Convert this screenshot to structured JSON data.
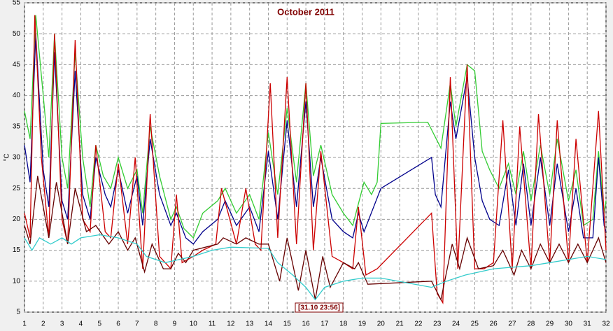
{
  "chart_data": {
    "type": "line",
    "title": "October 2011",
    "y_label": "°C",
    "annotation": "[31.10 23:56]",
    "xlim": [
      1,
      32
    ],
    "ylim": [
      5,
      55
    ],
    "xticks": [
      1,
      2,
      3,
      4,
      5,
      6,
      7,
      8,
      9,
      10,
      11,
      12,
      13,
      14,
      15,
      16,
      17,
      18,
      19,
      20,
      21,
      22,
      23,
      24,
      25,
      26,
      27,
      28,
      29,
      30,
      31,
      32
    ],
    "yticks": [
      5,
      10,
      15,
      20,
      25,
      30,
      35,
      40,
      45,
      50,
      55
    ],
    "grid": true,
    "series": [
      {
        "color": "#33cc33",
        "x": [
          1,
          1.3,
          1.6,
          2,
          2.3,
          2.6,
          3,
          3.3,
          3.7,
          4.1,
          4.5,
          4.8,
          5.2,
          5.6,
          6,
          6.5,
          7,
          7.3,
          7.7,
          8.2,
          8.8,
          9.1,
          9.5,
          10,
          10.5,
          11.3,
          11.7,
          12.3,
          13,
          13.5,
          14,
          14.5,
          15,
          15.5,
          16,
          16.4,
          16.8,
          17.4,
          18,
          18.5,
          19.1,
          19.5,
          19.8,
          20,
          22.5,
          23.2,
          23.7,
          24,
          24.6,
          25,
          25.4,
          25.8,
          26.3,
          26.8,
          27.2,
          27.6,
          28,
          28.5,
          29,
          29.4,
          30,
          30.4,
          30.8,
          31.3,
          31.6,
          31.9,
          32
        ],
        "values": [
          37.5,
          33,
          53,
          40,
          30,
          50,
          30,
          25,
          47,
          30,
          22,
          32,
          27,
          25,
          30,
          25,
          28,
          21,
          35,
          27,
          20,
          22,
          18.5,
          17,
          21,
          23,
          25,
          21,
          24,
          20,
          34,
          24,
          38,
          26,
          42,
          27,
          32,
          24,
          21,
          19,
          26,
          24,
          26,
          35.5,
          35.7,
          31.5,
          42,
          35,
          45,
          44,
          31,
          28,
          25,
          29,
          24,
          31,
          23,
          32,
          24,
          33,
          23,
          28,
          19,
          20,
          31,
          21,
          23
        ]
      },
      {
        "color": "#00008b",
        "x": [
          1,
          1.3,
          1.6,
          2,
          2.3,
          2.6,
          3,
          3.3,
          3.7,
          4.1,
          4.5,
          4.8,
          5.3,
          5.6,
          6,
          6.5,
          7,
          7.3,
          7.7,
          8.2,
          8.8,
          9.1,
          9.6,
          10,
          10.5,
          11.3,
          11.7,
          12.3,
          13,
          13.5,
          14,
          14.5,
          15,
          15.5,
          16,
          16.4,
          16.8,
          17.4,
          18,
          18.5,
          18.8,
          19.1,
          20,
          22.7,
          22.9,
          23.2,
          23.7,
          24,
          24.6,
          25,
          25.4,
          25.8,
          26.3,
          26.8,
          27.2,
          27.6,
          28,
          28.5,
          29,
          29.4,
          30,
          30.4,
          30.8,
          31.3,
          31.6,
          31.9,
          32
        ],
        "values": [
          32,
          26,
          50,
          28,
          22,
          47,
          23,
          20,
          44,
          24,
          20,
          30,
          24,
          22,
          28,
          21,
          27,
          19,
          33,
          24,
          19,
          21,
          17,
          16,
          18,
          20,
          23,
          19,
          22,
          18,
          31,
          20,
          36,
          22,
          39,
          22,
          30,
          20,
          18,
          17,
          21,
          18,
          25,
          30,
          24,
          22,
          39,
          33,
          43,
          30,
          23,
          20,
          19,
          28,
          19,
          29,
          19,
          30,
          19,
          29,
          18,
          25,
          17,
          17,
          30,
          19,
          18
        ]
      },
      {
        "color": "#cc0000",
        "x": [
          1,
          1.3,
          1.55,
          1.9,
          2.3,
          2.6,
          3,
          3.3,
          3.7,
          4.1,
          4.5,
          4.8,
          5.3,
          5.6,
          6,
          6.5,
          6.9,
          7.3,
          7.7,
          8.2,
          8.8,
          9.1,
          9.4,
          10,
          10.5,
          11.2,
          11.5,
          12.3,
          12.8,
          13.3,
          13.6,
          14.1,
          14.5,
          15,
          15.5,
          16,
          16.4,
          16.8,
          17.4,
          18,
          18.5,
          18.8,
          19.2,
          19.8,
          22.7,
          23,
          23.3,
          23.7,
          24.1,
          24.6,
          25,
          25.5,
          26,
          26.5,
          27,
          27.4,
          28,
          28.4,
          29,
          29.4,
          30,
          30.4,
          31,
          31.6,
          32
        ],
        "values": [
          21,
          17,
          53,
          30,
          17,
          50,
          20,
          16,
          49,
          20,
          18,
          32,
          18,
          17,
          29,
          16,
          30,
          12,
          37,
          14,
          12,
          24,
          13,
          14,
          15,
          16,
          25,
          16,
          25,
          16,
          15,
          42,
          17,
          43,
          16,
          42,
          15,
          31,
          14,
          13,
          12,
          22,
          11,
          12,
          21,
          8,
          6.5,
          43,
          12,
          45,
          12,
          12,
          13,
          36,
          12,
          35,
          12,
          37,
          13,
          36,
          13,
          33,
          13,
          37.5,
          15
        ]
      },
      {
        "color": "#660000",
        "x": [
          1,
          1.3,
          1.7,
          2.3,
          2.7,
          3.3,
          3.7,
          4.3,
          4.8,
          5.5,
          6,
          6.5,
          6.9,
          7.4,
          7.8,
          8.4,
          8.8,
          9.2,
          9.6,
          10,
          11.3,
          11.6,
          12.3,
          12.8,
          13.5,
          14,
          14.6,
          15,
          15.6,
          16,
          16.5,
          16.9,
          17.3,
          18,
          18.6,
          18.8,
          19.3,
          22.7,
          23.2,
          23.8,
          24.2,
          24.6,
          25.2,
          26,
          26.5,
          27.1,
          27.5,
          28,
          28.5,
          29,
          29.5,
          30,
          30.5,
          31,
          31.6,
          32
        ],
        "values": [
          19,
          16,
          27,
          17,
          26,
          16,
          25,
          18,
          19,
          16,
          18,
          15,
          17,
          11.5,
          16,
          12,
          12,
          14.5,
          13,
          15,
          16,
          17,
          16,
          17,
          16,
          16,
          10,
          17,
          8.5,
          15,
          7,
          14,
          9,
          13,
          12,
          13,
          9.5,
          10,
          7,
          16,
          12,
          17,
          12,
          12.5,
          15,
          11,
          15,
          12,
          16,
          13,
          16,
          13,
          16,
          13,
          17,
          13
        ]
      },
      {
        "color": "#33cccc",
        "x": [
          1,
          1.4,
          1.8,
          2.4,
          3,
          3.5,
          4,
          5,
          6,
          7,
          7.5,
          8.5,
          10,
          11,
          12,
          14,
          14.5,
          15.3,
          16,
          16.5,
          17,
          18,
          19,
          20,
          22.7,
          23.5,
          24.5,
          26,
          28,
          29,
          30,
          31,
          32
        ],
        "values": [
          17,
          15,
          17,
          16,
          17,
          16,
          17,
          17.5,
          17,
          16,
          14,
          13,
          14,
          15,
          15.5,
          15.3,
          13,
          11,
          9,
          7,
          9,
          10,
          10.5,
          10.5,
          9,
          10,
          11,
          12,
          12.5,
          13,
          13.5,
          14,
          13.5
        ]
      }
    ]
  }
}
